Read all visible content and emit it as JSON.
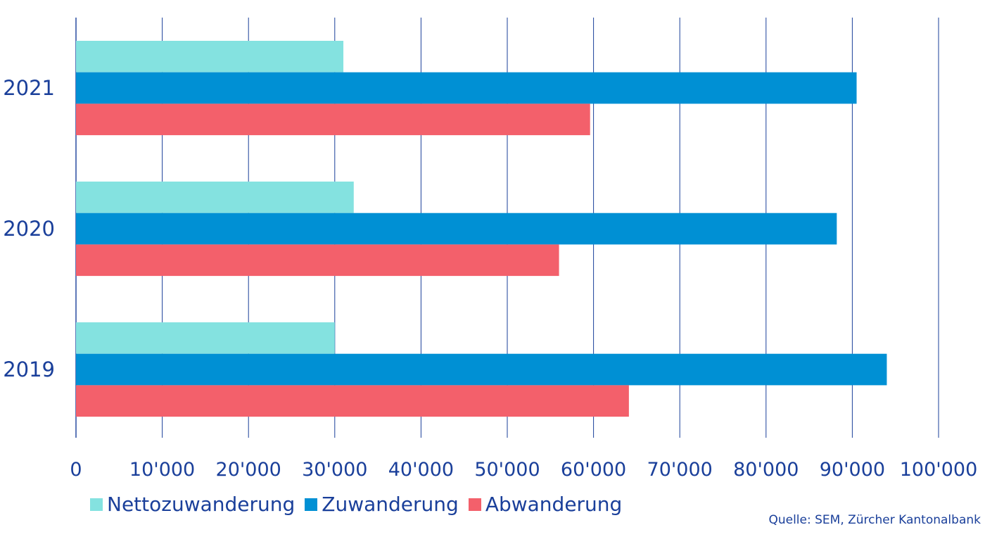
{
  "chart_data": {
    "type": "bar",
    "orientation": "horizontal",
    "categories": [
      "2021",
      "2020",
      "2019"
    ],
    "series": [
      {
        "name": "Nettozuwanderung",
        "color": "#84e2e0",
        "values": [
          31000,
          32200,
          30000
        ]
      },
      {
        "name": "Zuwanderung",
        "color": "#0090d4",
        "values": [
          90500,
          88200,
          94000
        ]
      },
      {
        "name": "Abwanderung",
        "color": "#f3606b",
        "values": [
          59600,
          56000,
          64100
        ]
      }
    ],
    "xlim": [
      0,
      100000
    ],
    "xticks": [
      0,
      10000,
      20000,
      30000,
      40000,
      50000,
      60000,
      70000,
      80000,
      90000,
      100000
    ],
    "xtick_labels": [
      "0",
      "10'000",
      "20'000",
      "30'000",
      "40'000",
      "50'000",
      "60'000",
      "70'000",
      "80'000",
      "90'000",
      "100'000"
    ],
    "grid": "vertical",
    "legend_position": "bottom-left",
    "axis_color": "#1a3f9a"
  },
  "source": "Quelle: SEM, Zürcher Kantonalbank"
}
